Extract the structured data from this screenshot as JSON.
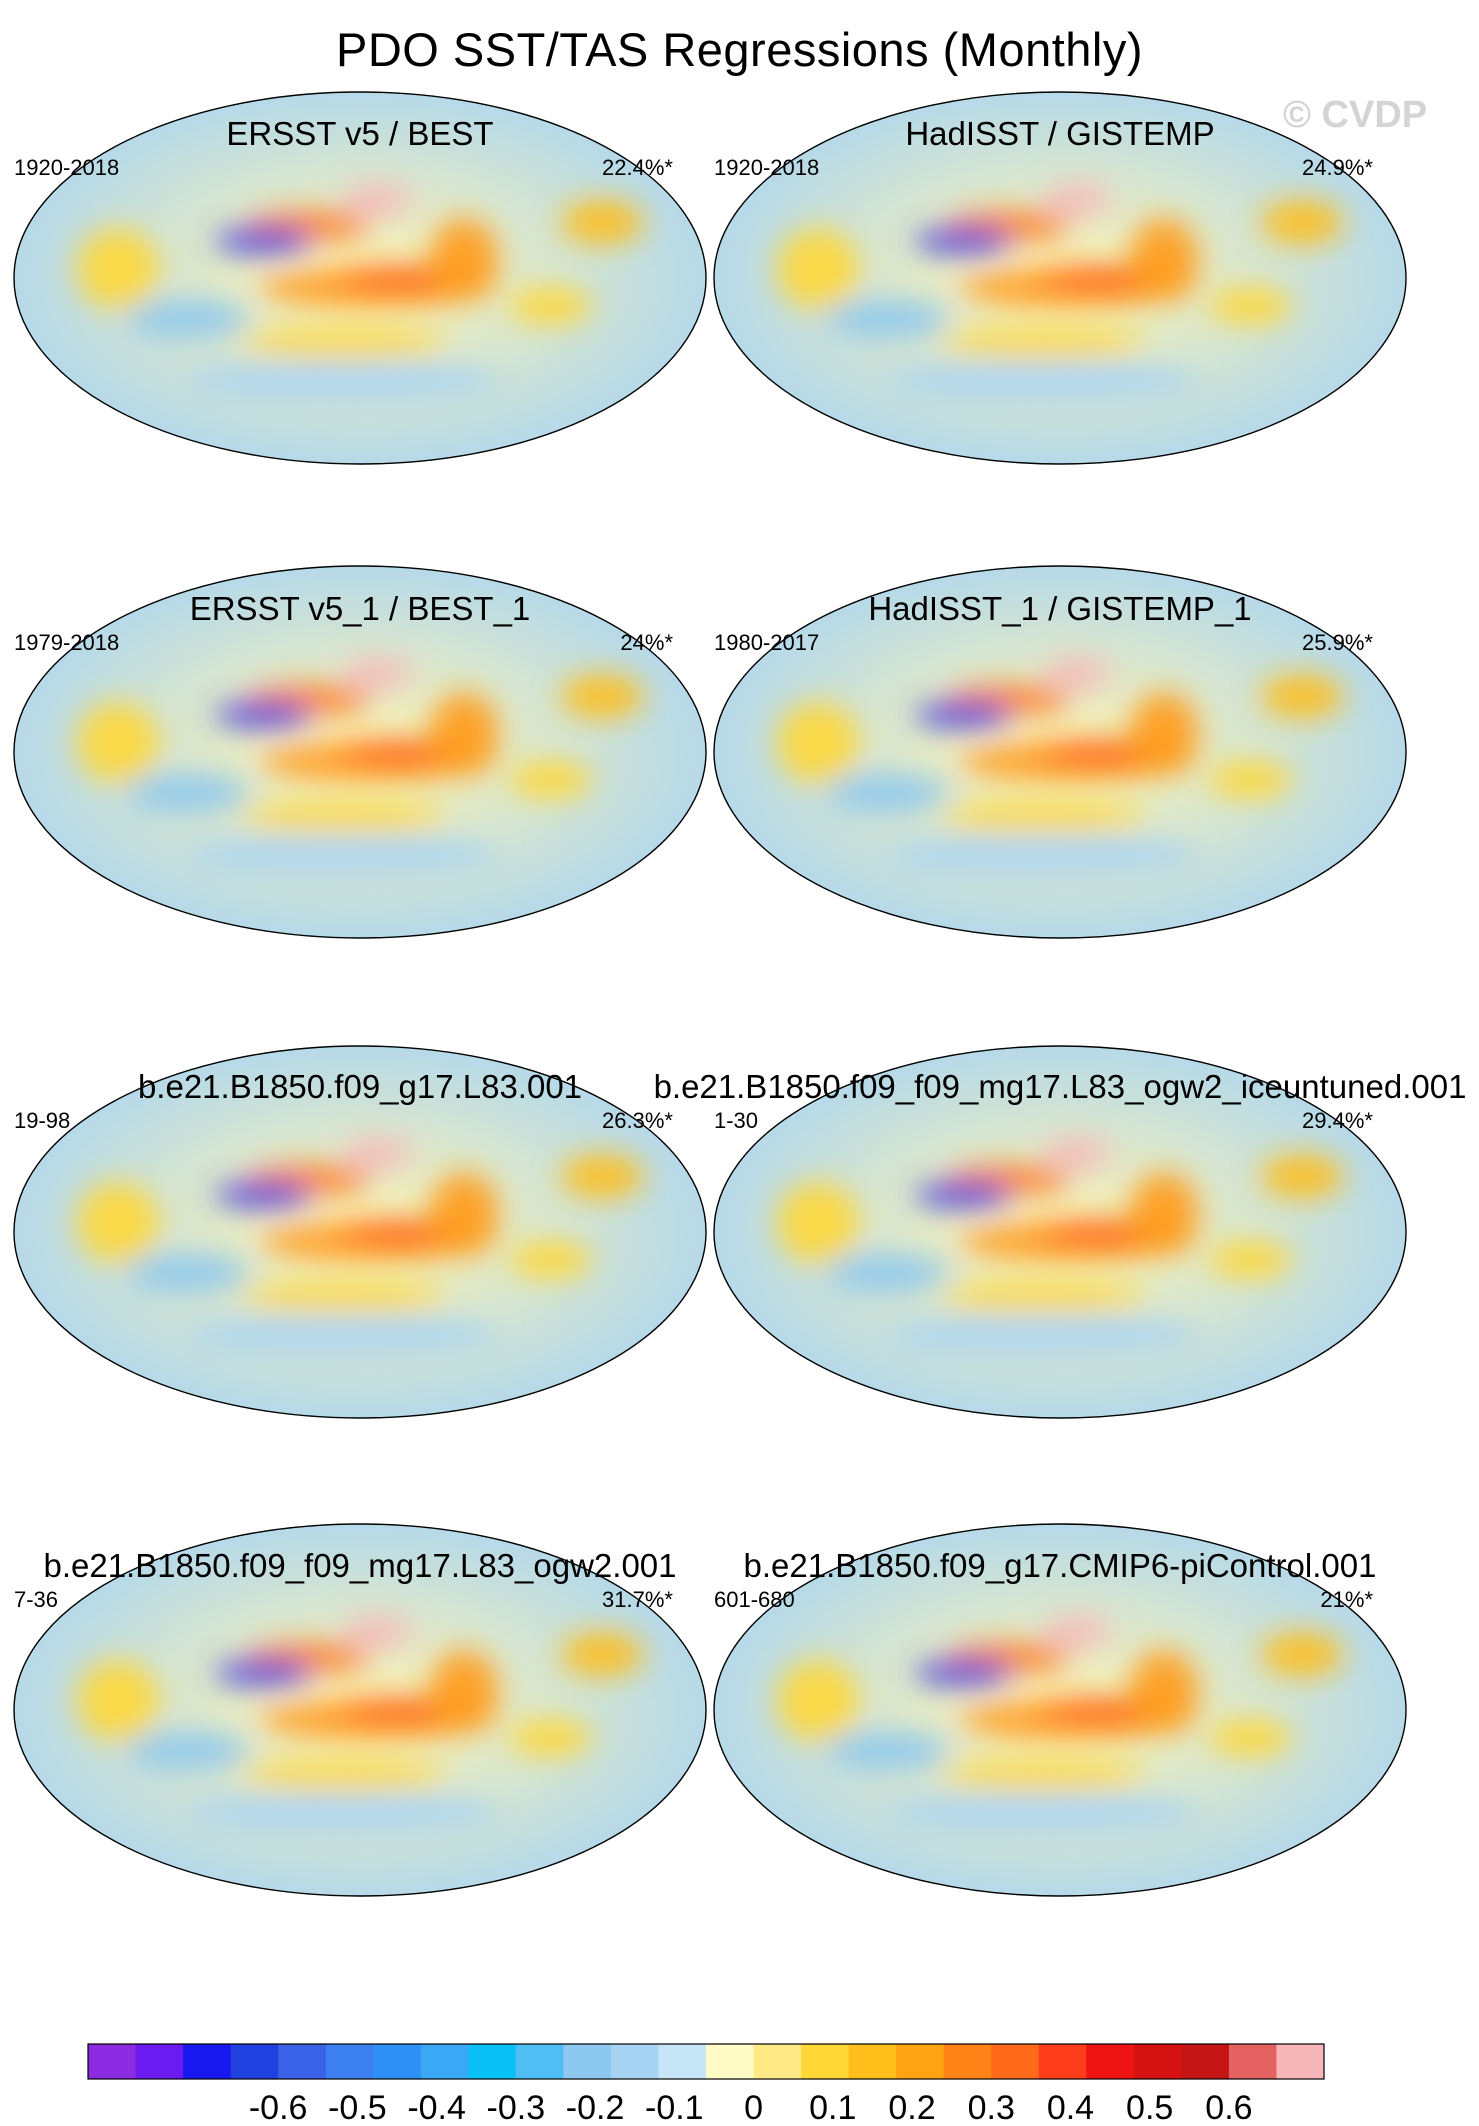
{
  "title": "PDO SST/TAS Regressions (Monthly)",
  "watermark": "© CVDP",
  "chart_data": {
    "type": "heatmap",
    "projection": "robinson-like global map, Pacific-centered",
    "units": "regression coefficient",
    "panels": [
      {
        "title": "ERSST v5 / BEST",
        "period": "1920-2018",
        "pct_variance": "22.4%*"
      },
      {
        "title": "HadISST / GISTEMP",
        "period": "1920-2018",
        "pct_variance": "24.9%*"
      },
      {
        "title": "ERSST v5_1 / BEST_1",
        "period": "1979-2018",
        "pct_variance": "24%*"
      },
      {
        "title": "HadISST_1 / GISTEMP_1",
        "period": "1980-2017",
        "pct_variance": "25.9%*"
      },
      {
        "title": "b.e21.B1850.f09_g17.L83.001",
        "period": "19-98",
        "pct_variance": "26.3%*"
      },
      {
        "title": "b.e21.B1850.f09_f09_mg17.L83_ogw2_iceuntuned.001",
        "period": "1-30",
        "pct_variance": "29.4%*"
      },
      {
        "title": "b.e21.B1850.f09_f09_mg17.L83_ogw2.001",
        "period": "7-36",
        "pct_variance": "31.7%*"
      },
      {
        "title": "b.e21.B1850.f09_g17.CMIP6-piControl.001",
        "period": "601-680",
        "pct_variance": "21%*"
      }
    ],
    "colorbar": {
      "labels": [
        "-0.6",
        "-0.5",
        "-0.4",
        "-0.3",
        "-0.2",
        "-0.1",
        "0",
        "0.1",
        "0.2",
        "0.3",
        "0.4",
        "0.5",
        "0.6"
      ],
      "colors": [
        "#8b2be2",
        "#6a1bf0",
        "#1818f0",
        "#2040e0",
        "#3a62e8",
        "#3c7ff0",
        "#2e8ff5",
        "#3aa8f5",
        "#08c0f5",
        "#50bdf5",
        "#8cc8f0",
        "#a8d4f4",
        "#c6e6f8",
        "#fffbc4",
        "#ffea85",
        "#ffd838",
        "#ffbe19",
        "#ffa312",
        "#ff8316",
        "#ff6a1a",
        "#ff3c1c",
        "#ee1414",
        "#d61111",
        "#c41414",
        "#e46262",
        "#f7b6ba"
      ]
    }
  }
}
